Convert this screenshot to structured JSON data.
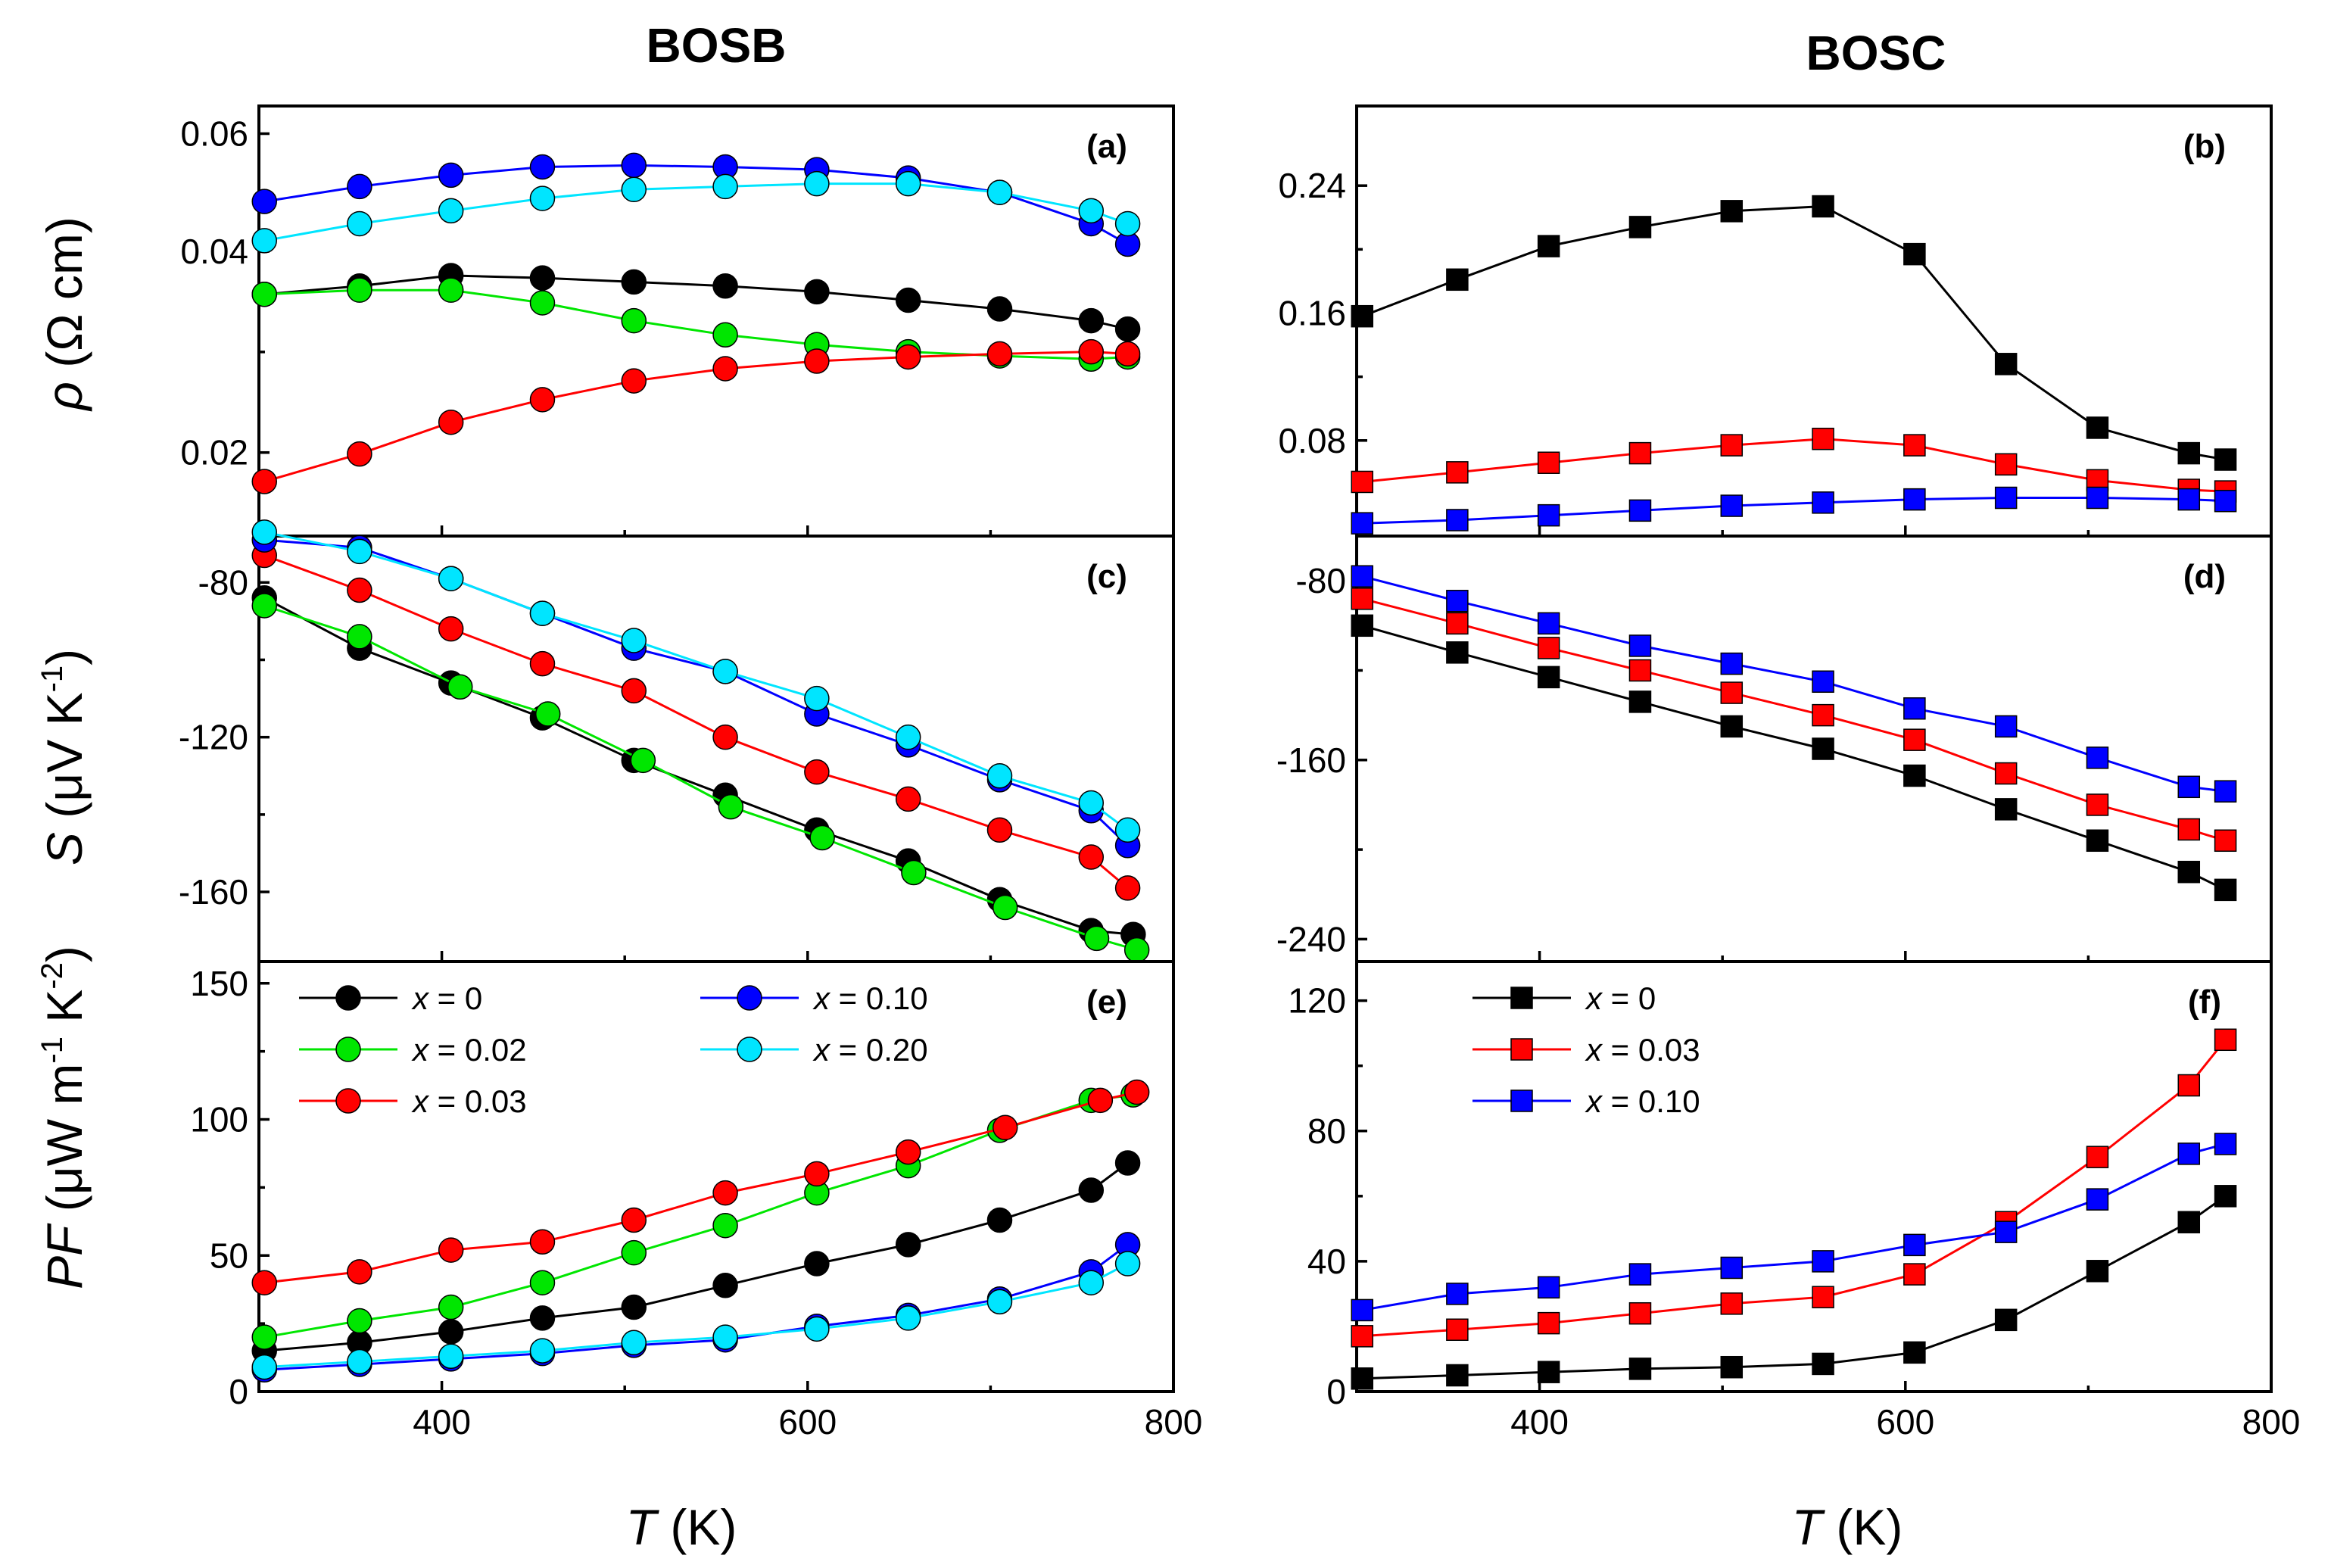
{
  "column_titles": {
    "left": "BOSB",
    "right": "BOSC"
  },
  "axis_titles": {
    "rho": {
      "symbol": "ρ",
      "unit": " (Ω cm)"
    },
    "seebeck": {
      "symbol": "S",
      "unit_pre": " (μV K",
      "unit_sup": "-1",
      "unit_post": ")"
    },
    "pf": {
      "symbol": "PF",
      "unit_a": " (μW m",
      "sup_a": "-1",
      "unit_b": " K",
      "sup_b": "-2",
      "unit_c": ")"
    },
    "x_symbol": "T",
    "x_unit": " (K)"
  },
  "colors": {
    "x0": "#000000",
    "x002": "#00e600",
    "x003": "#ff0000",
    "x010": "#0000ff",
    "x020": "#00e5ff"
  },
  "chart_data": [
    {
      "id": "a",
      "label": "(a)",
      "type": "line",
      "marker": "circle",
      "xlim": [
        300,
        800
      ],
      "ylim": [
        0.015,
        0.066
      ],
      "yscale": "log",
      "xticks": [
        400,
        600,
        800
      ],
      "xticks_labeled": false,
      "yticks": [
        0.02,
        0.04,
        0.06
      ],
      "ytick_labels": [
        "0.02",
        "0.04",
        "0.06"
      ],
      "series": [
        {
          "name": "x = 0",
          "color": "#000000",
          "x": [
            303,
            355,
            405,
            455,
            505,
            555,
            605,
            655,
            705,
            755,
            775
          ],
          "y": [
            0.0345,
            0.0355,
            0.0368,
            0.0365,
            0.036,
            0.0355,
            0.0348,
            0.0338,
            0.0328,
            0.0315,
            0.0306
          ]
        },
        {
          "name": "x = 0.02",
          "color": "#00e600",
          "x": [
            303,
            355,
            405,
            455,
            505,
            555,
            605,
            655,
            705,
            755,
            775
          ],
          "y": [
            0.0345,
            0.035,
            0.035,
            0.0335,
            0.0315,
            0.03,
            0.029,
            0.0283,
            0.0279,
            0.0276,
            0.0278
          ]
        },
        {
          "name": "x = 0.03",
          "color": "#ff0000",
          "x": [
            303,
            355,
            405,
            455,
            505,
            555,
            605,
            655,
            705,
            755,
            775
          ],
          "y": [
            0.0181,
            0.0199,
            0.0222,
            0.024,
            0.0256,
            0.0267,
            0.0274,
            0.0278,
            0.0281,
            0.0283,
            0.0281
          ]
        },
        {
          "name": "x = 0.10",
          "color": "#0000ff",
          "x": [
            303,
            355,
            405,
            455,
            505,
            555,
            605,
            655,
            705,
            755,
            775
          ],
          "y": [
            0.0475,
            0.05,
            0.052,
            0.0535,
            0.0538,
            0.0535,
            0.053,
            0.0515,
            0.049,
            0.044,
            0.041
          ]
        },
        {
          "name": "x = 0.20",
          "color": "#00e5ff",
          "x": [
            303,
            355,
            405,
            455,
            505,
            555,
            605,
            655,
            705,
            755,
            775
          ],
          "y": [
            0.0415,
            0.044,
            0.046,
            0.048,
            0.0495,
            0.05,
            0.0505,
            0.0505,
            0.049,
            0.046,
            0.044
          ]
        }
      ]
    },
    {
      "id": "b",
      "label": "(b)",
      "type": "line",
      "marker": "square",
      "xlim": [
        300,
        800
      ],
      "ylim": [
        0.02,
        0.29
      ],
      "yscale": "linear",
      "xticks": [
        400,
        600,
        800
      ],
      "xticks_labeled": false,
      "yticks": [
        0.08,
        0.16,
        0.24
      ],
      "ytick_labels": [
        "0.08",
        "0.16",
        "0.24"
      ],
      "series": [
        {
          "name": "x = 0",
          "color": "#000000",
          "x": [
            303,
            355,
            405,
            455,
            505,
            555,
            605,
            655,
            705,
            755,
            775
          ],
          "y": [
            0.158,
            0.181,
            0.202,
            0.214,
            0.224,
            0.227,
            0.197,
            0.128,
            0.088,
            0.072,
            0.068
          ]
        },
        {
          "name": "x = 0.03",
          "color": "#ff0000",
          "x": [
            303,
            355,
            405,
            455,
            505,
            555,
            605,
            655,
            705,
            755,
            775
          ],
          "y": [
            0.054,
            0.06,
            0.066,
            0.072,
            0.077,
            0.081,
            0.077,
            0.065,
            0.055,
            0.049,
            0.048
          ]
        },
        {
          "name": "x = 0.10",
          "color": "#0000ff",
          "x": [
            303,
            355,
            405,
            455,
            505,
            555,
            605,
            655,
            705,
            755,
            775
          ],
          "y": [
            0.028,
            0.03,
            0.033,
            0.036,
            0.039,
            0.041,
            0.043,
            0.044,
            0.044,
            0.043,
            0.042
          ]
        }
      ]
    },
    {
      "id": "c",
      "label": "(c)",
      "type": "line",
      "marker": "circle",
      "xlim": [
        300,
        800
      ],
      "ylim": [
        -178,
        -68
      ],
      "yscale": "linear",
      "xticks": [
        400,
        600,
        800
      ],
      "xticks_labeled": false,
      "yticks": [
        -160,
        -120,
        -80
      ],
      "ytick_labels": [
        "-160",
        "-120",
        "-80"
      ],
      "series": [
        {
          "name": "x = 0",
          "color": "#000000",
          "x": [
            303,
            355,
            405,
            455,
            505,
            555,
            605,
            655,
            705,
            755,
            778
          ],
          "y": [
            -84,
            -97,
            -106,
            -115,
            -126,
            -135,
            -144,
            -152,
            -162,
            -170,
            -171
          ]
        },
        {
          "name": "x = 0.02",
          "color": "#00e600",
          "x": [
            303,
            355,
            410,
            458,
            510,
            558,
            608,
            658,
            708,
            758,
            780
          ],
          "y": [
            -86,
            -94,
            -107,
            -114,
            -126,
            -138,
            -146,
            -155,
            -164,
            -172,
            -175
          ]
        },
        {
          "name": "x = 0.03",
          "color": "#ff0000",
          "x": [
            303,
            355,
            405,
            455,
            505,
            555,
            605,
            655,
            705,
            755,
            775
          ],
          "y": [
            -73,
            -82,
            -92,
            -101,
            -108,
            -120,
            -129,
            -136,
            -144,
            -151,
            -159
          ]
        },
        {
          "name": "x = 0.10",
          "color": "#0000ff",
          "x": [
            303,
            355,
            405,
            455,
            505,
            555,
            605,
            655,
            705,
            755,
            775
          ],
          "y": [
            -69,
            -71,
            -79,
            -88,
            -97,
            -103,
            -114,
            -122,
            -131,
            -139,
            -148
          ]
        },
        {
          "name": "x = 0.20",
          "color": "#00e5ff",
          "x": [
            303,
            355,
            405,
            455,
            505,
            555,
            605,
            655,
            705,
            755,
            775
          ],
          "y": [
            -67,
            -72,
            -79,
            -88,
            -95,
            -103,
            -110,
            -120,
            -130,
            -137,
            -144
          ]
        }
      ]
    },
    {
      "id": "d",
      "label": "(d)",
      "type": "line",
      "marker": "square",
      "xlim": [
        300,
        800
      ],
      "ylim": [
        -250,
        -60
      ],
      "yscale": "linear",
      "xticks": [
        400,
        600,
        800
      ],
      "xticks_labeled": false,
      "yticks": [
        -240,
        -160,
        -80
      ],
      "ytick_labels": [
        "-240",
        "-160",
        "-80"
      ],
      "series": [
        {
          "name": "x = 0",
          "color": "#000000",
          "x": [
            303,
            355,
            405,
            455,
            505,
            555,
            605,
            655,
            705,
            755,
            775
          ],
          "y": [
            -100,
            -112,
            -123,
            -134,
            -145,
            -155,
            -167,
            -182,
            -196,
            -210,
            -218
          ]
        },
        {
          "name": "x = 0.03",
          "color": "#ff0000",
          "x": [
            303,
            355,
            405,
            455,
            505,
            555,
            605,
            655,
            705,
            755,
            775
          ],
          "y": [
            -88,
            -99,
            -110,
            -120,
            -130,
            -140,
            -151,
            -166,
            -180,
            -191,
            -196
          ]
        },
        {
          "name": "x = 0.10",
          "color": "#0000ff",
          "x": [
            303,
            355,
            405,
            455,
            505,
            555,
            605,
            655,
            705,
            755,
            775
          ],
          "y": [
            -78,
            -89,
            -99,
            -109,
            -117,
            -125,
            -137,
            -145,
            -159,
            -172,
            -174
          ]
        }
      ]
    },
    {
      "id": "e",
      "label": "(e)",
      "type": "line",
      "marker": "circle",
      "xlim": [
        300,
        800
      ],
      "ylim": [
        0,
        158
      ],
      "yscale": "linear",
      "xticks": [
        400,
        600,
        800
      ],
      "xticks_labeled": true,
      "xtick_labels": [
        "400",
        "600",
        "800"
      ],
      "yticks": [
        0,
        50,
        100,
        150
      ],
      "ytick_labels": [
        "0",
        "50",
        "100",
        "150"
      ],
      "series": [
        {
          "name": "x = 0",
          "color": "#000000",
          "x": [
            303,
            355,
            405,
            455,
            505,
            555,
            605,
            655,
            705,
            755,
            775
          ],
          "y": [
            15,
            18,
            22,
            27,
            31,
            39,
            47,
            54,
            63,
            74,
            84
          ]
        },
        {
          "name": "x = 0.02",
          "color": "#00e600",
          "x": [
            303,
            355,
            405,
            455,
            505,
            555,
            605,
            655,
            705,
            755,
            778
          ],
          "y": [
            20,
            26,
            31,
            40,
            51,
            61,
            73,
            83,
            96,
            107,
            109
          ]
        },
        {
          "name": "x = 0.03",
          "color": "#ff0000",
          "x": [
            303,
            355,
            405,
            455,
            505,
            555,
            605,
            655,
            708,
            760,
            780
          ],
          "y": [
            40,
            44,
            52,
            55,
            63,
            73,
            80,
            88,
            97,
            107,
            110
          ]
        },
        {
          "name": "x = 0.10",
          "color": "#0000ff",
          "x": [
            303,
            355,
            405,
            455,
            505,
            555,
            605,
            655,
            705,
            755,
            775
          ],
          "y": [
            8,
            10,
            12,
            14,
            17,
            19,
            24,
            28,
            34,
            44,
            54
          ]
        },
        {
          "name": "x = 0.20",
          "color": "#00e5ff",
          "x": [
            303,
            355,
            405,
            455,
            505,
            555,
            605,
            655,
            705,
            755,
            775
          ],
          "y": [
            9,
            11,
            13,
            15,
            18,
            20,
            23,
            27,
            33,
            40,
            47
          ]
        }
      ],
      "legend": {
        "placement": "top-left",
        "columns": 2,
        "order": [
          "x = 0",
          "x = 0.10",
          "x = 0.02",
          "x = 0.20",
          "x = 0.03"
        ]
      }
    },
    {
      "id": "f",
      "label": "(f)",
      "type": "line",
      "marker": "square",
      "xlim": [
        300,
        800
      ],
      "ylim": [
        0,
        132
      ],
      "yscale": "linear",
      "xticks": [
        400,
        600,
        800
      ],
      "xticks_labeled": true,
      "xtick_labels": [
        "400",
        "600",
        "800"
      ],
      "yticks": [
        0,
        40,
        80,
        120
      ],
      "ytick_labels": [
        "0",
        "40",
        "80",
        "120"
      ],
      "series": [
        {
          "name": "x = 0",
          "color": "#000000",
          "x": [
            303,
            355,
            405,
            455,
            505,
            555,
            605,
            655,
            705,
            755,
            775
          ],
          "y": [
            4,
            5,
            6,
            7,
            7.5,
            8.5,
            12,
            22,
            37,
            52,
            60
          ]
        },
        {
          "name": "x = 0.03",
          "color": "#ff0000",
          "x": [
            303,
            355,
            405,
            455,
            505,
            555,
            605,
            655,
            705,
            755,
            775
          ],
          "y": [
            17,
            19,
            21,
            24,
            27,
            29,
            36,
            52,
            72,
            94,
            108
          ]
        },
        {
          "name": "x = 0.10",
          "color": "#0000ff",
          "x": [
            303,
            355,
            405,
            455,
            505,
            555,
            605,
            655,
            705,
            755,
            775
          ],
          "y": [
            25,
            30,
            32,
            36,
            38,
            40,
            45,
            49,
            59,
            73,
            76
          ]
        }
      ],
      "legend": {
        "placement": "top-left",
        "columns": 1,
        "order": [
          "x = 0",
          "x = 0.03",
          "x = 0.10"
        ]
      }
    }
  ]
}
